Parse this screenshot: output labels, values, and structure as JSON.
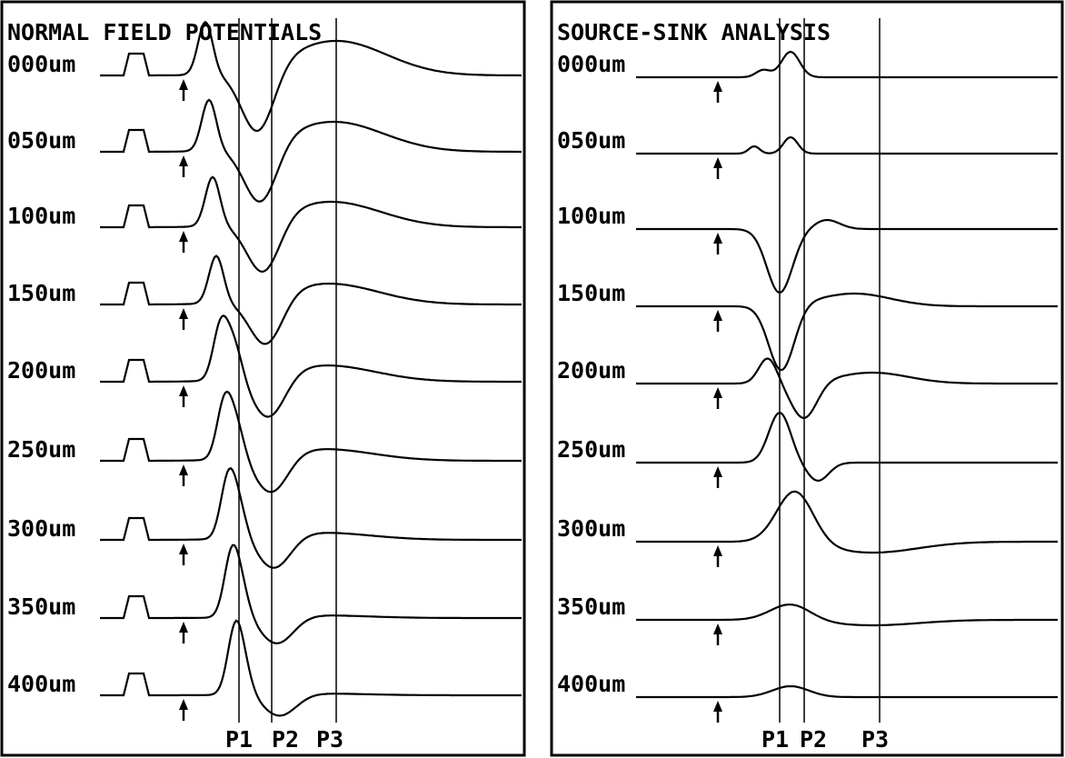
{
  "left_panel": {
    "title": "NORMAL FIELD POTENTIALS",
    "depths": [
      "000um",
      "050um",
      "100um",
      "150um",
      "200um",
      "250um",
      "300um",
      "350um",
      "400um"
    ],
    "markers": [
      "P1",
      "P2",
      "P3"
    ]
  },
  "right_panel": {
    "title": "SOURCE-SINK ANALYSIS",
    "depths": [
      "000um",
      "050um",
      "100um",
      "150um",
      "200um",
      "250um",
      "300um",
      "350um",
      "400um"
    ],
    "markers": [
      "P1",
      "P2",
      "P3"
    ]
  }
}
